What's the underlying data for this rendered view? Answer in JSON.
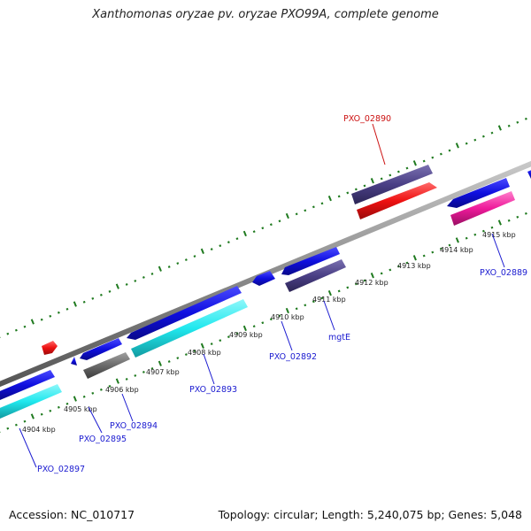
{
  "title": "Xanthomonas oryzae pv. oryzae PXO99A, complete genome",
  "footer": {
    "accession": "Accession: NC_010717",
    "summary": "Topology: circular; Length: 5,240,075 bp; Genes: 5,048"
  },
  "colors": {
    "backbone": "#8c8c8c",
    "ticks": "#1f7a1f",
    "blue": "#0f0fe0",
    "cyan": "#20e8ee",
    "navy": "#4a3f85",
    "gray": "#6a6a6a",
    "red": "#ee1111",
    "pink": "#ee1a9a",
    "label_blue": "#1a1ad0",
    "label_red": "#cc1111"
  },
  "kbp_ticks": [
    "4904 kbp",
    "4905 kbp",
    "4906 kbp",
    "4907 kbp",
    "4908 kbp",
    "4909 kbp",
    "4910 kbp",
    "4911 kbp",
    "4912 kbp",
    "4913 kbp",
    "4914 kbp",
    "4915 kbp"
  ],
  "gene_labels": [
    {
      "id": "PXO_02897",
      "text": "PXO_02897",
      "color": "label_blue"
    },
    {
      "id": "PXO_02895",
      "text": "PXO_02895",
      "color": "label_blue"
    },
    {
      "id": "PXO_02894",
      "text": "PXO_02894",
      "color": "label_blue"
    },
    {
      "id": "PXO_02893",
      "text": "PXO_02893",
      "color": "label_blue"
    },
    {
      "id": "PXO_02892",
      "text": "PXO_02892",
      "color": "label_blue"
    },
    {
      "id": "mgtE",
      "text": "mgtE",
      "color": "label_blue"
    },
    {
      "id": "PXO_02889",
      "text": "PXO_02889",
      "color": "label_blue"
    },
    {
      "id": "PXO_02890",
      "text": "PXO_02890",
      "color": "label_red"
    }
  ]
}
